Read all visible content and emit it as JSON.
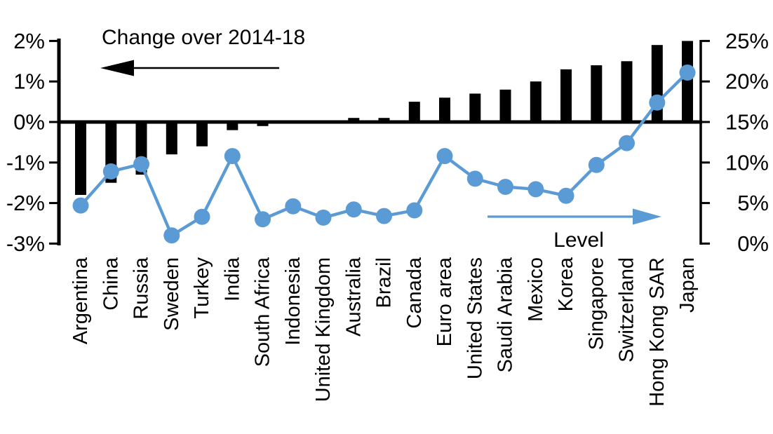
{
  "chart_data": {
    "type": "bar",
    "subtype": "dual-axis bar + line",
    "categories": [
      "Argentina",
      "China",
      "Russia",
      "Sweden",
      "Turkey",
      "India",
      "South Africa",
      "Indonesia",
      "United Kingdom",
      "Australia",
      "Brazil",
      "Canada",
      "Euro area",
      "United States",
      "Saudi Arabia",
      "Mexico",
      "Korea",
      "Singapore",
      "Switzerland",
      "Hong Kong SAR",
      "Japan"
    ],
    "series": [
      {
        "name": "Change over 2014-18",
        "type": "bar",
        "axis": "left",
        "color": "#000000",
        "values": [
          -1.8,
          -1.5,
          -1.3,
          -0.8,
          -0.6,
          -0.2,
          -0.1,
          0.0,
          0.0,
          0.1,
          0.1,
          0.5,
          0.6,
          0.7,
          0.8,
          1.0,
          1.3,
          1.4,
          1.5,
          1.9,
          2.0
        ]
      },
      {
        "name": "Level",
        "type": "line",
        "axis": "right",
        "color": "#5B9BD5",
        "values": [
          4.7,
          8.9,
          9.8,
          1.0,
          3.3,
          10.8,
          3.0,
          4.6,
          3.2,
          4.2,
          3.4,
          4.1,
          10.8,
          8.0,
          7.0,
          6.7,
          5.9,
          9.7,
          12.4,
          17.4,
          21.1
        ]
      }
    ],
    "left_axis": {
      "ticks": [
        "2%",
        "1%",
        "0%",
        "-1%",
        "-2%",
        "-3%"
      ],
      "tick_values": [
        2,
        1,
        0,
        -1,
        -2,
        -3
      ],
      "min": -3,
      "max": 2
    },
    "right_axis": {
      "ticks": [
        "25%",
        "20%",
        "15%",
        "10%",
        "5%",
        "0%"
      ],
      "tick_values": [
        25,
        20,
        15,
        10,
        5,
        0
      ],
      "min": 0,
      "max": 25
    },
    "annotations": [
      {
        "text": "Change over 2014-18",
        "arrow": "left",
        "arrow_color": "#000000",
        "position": "top-left"
      },
      {
        "text": "Level",
        "arrow": "right",
        "arrow_color": "#5B9BD5",
        "position": "bottom-right"
      }
    ],
    "grid": false,
    "legend_position": "none (in-chart arrow annotations)"
  }
}
